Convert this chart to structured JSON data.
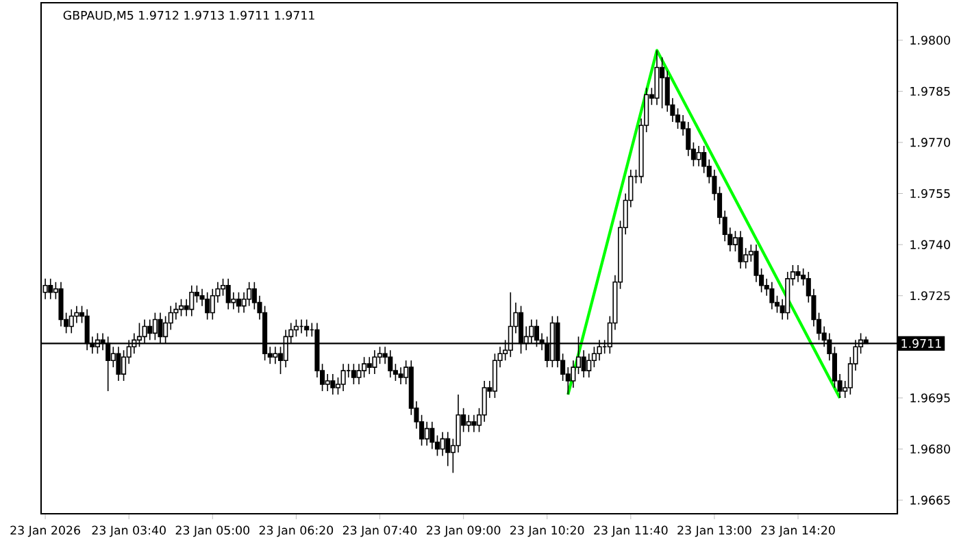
{
  "chart_data": {
    "type": "candlestick",
    "title": "GBPAUD,M5  1.9712 1.9713 1.9711 1.9711",
    "color": "#000000",
    "xlim": [
      "2026-01-23T02:16",
      "2026-01-23T15:55"
    ],
    "xticks": [
      {
        "value": "2026-01-23T02:20",
        "label": "23 Jan 2026"
      },
      {
        "value": "2026-01-23T03:40",
        "label": "23 Jan 03:40"
      },
      {
        "value": "2026-01-23T05:00",
        "label": "23 Jan 05:00"
      },
      {
        "value": "2026-01-23T06:20",
        "label": "23 Jan 06:20"
      },
      {
        "value": "2026-01-23T07:40",
        "label": "23 Jan 07:40"
      },
      {
        "value": "2026-01-23T09:00",
        "label": "23 Jan 09:00"
      },
      {
        "value": "2026-01-23T10:20",
        "label": "23 Jan 10:20"
      },
      {
        "value": "2026-01-23T11:40",
        "label": "23 Jan 11:40"
      },
      {
        "value": "2026-01-23T13:00",
        "label": "23 Jan 13:00"
      },
      {
        "value": "2026-01-23T14:20",
        "label": "23 Jan 14:20"
      }
    ],
    "ylim": [
      1.9661,
      1.9811
    ],
    "yticks": [
      {
        "value": 1.9665,
        "label": "1.9665"
      },
      {
        "value": 1.968,
        "label": "1.9680"
      },
      {
        "value": 1.9695,
        "label": "1.9695"
      },
      {
        "value": 1.9725,
        "label": "1.9725"
      },
      {
        "value": 1.974,
        "label": "1.9740"
      },
      {
        "value": 1.9755,
        "label": "1.9755"
      },
      {
        "value": 1.977,
        "label": "1.9770"
      },
      {
        "value": 1.9785,
        "label": "1.9785"
      },
      {
        "value": 1.98,
        "label": "1.9800"
      }
    ],
    "ref_lines": [
      {
        "axis": "y",
        "value": 1.9711,
        "label": "1.9711",
        "color": "#000000"
      }
    ],
    "x": [
      "2026-01-23T02:20",
      "2026-01-23T02:25",
      "2026-01-23T02:30",
      "2026-01-23T02:35",
      "2026-01-23T02:40",
      "2026-01-23T02:45",
      "2026-01-23T02:50",
      "2026-01-23T02:55",
      "2026-01-23T03:00",
      "2026-01-23T03:05",
      "2026-01-23T03:10",
      "2026-01-23T03:15",
      "2026-01-23T03:20",
      "2026-01-23T03:25",
      "2026-01-23T03:30",
      "2026-01-23T03:35",
      "2026-01-23T03:40",
      "2026-01-23T03:45",
      "2026-01-23T03:50",
      "2026-01-23T03:55",
      "2026-01-23T04:00",
      "2026-01-23T04:05",
      "2026-01-23T04:10",
      "2026-01-23T04:15",
      "2026-01-23T04:20",
      "2026-01-23T04:25",
      "2026-01-23T04:30",
      "2026-01-23T04:35",
      "2026-01-23T04:40",
      "2026-01-23T04:45",
      "2026-01-23T04:50",
      "2026-01-23T04:55",
      "2026-01-23T05:00",
      "2026-01-23T05:05",
      "2026-01-23T05:10",
      "2026-01-23T05:15",
      "2026-01-23T05:20",
      "2026-01-23T05:25",
      "2026-01-23T05:30",
      "2026-01-23T05:35",
      "2026-01-23T05:40",
      "2026-01-23T05:45",
      "2026-01-23T05:50",
      "2026-01-23T05:55",
      "2026-01-23T06:00",
      "2026-01-23T06:05",
      "2026-01-23T06:10",
      "2026-01-23T06:15",
      "2026-01-23T06:20",
      "2026-01-23T06:25",
      "2026-01-23T06:30",
      "2026-01-23T06:35",
      "2026-01-23T06:40",
      "2026-01-23T06:45",
      "2026-01-23T06:50",
      "2026-01-23T06:55",
      "2026-01-23T07:00",
      "2026-01-23T07:05",
      "2026-01-23T07:10",
      "2026-01-23T07:15",
      "2026-01-23T07:20",
      "2026-01-23T07:25",
      "2026-01-23T07:30",
      "2026-01-23T07:35",
      "2026-01-23T07:40",
      "2026-01-23T07:45",
      "2026-01-23T07:50",
      "2026-01-23T07:55",
      "2026-01-23T08:00",
      "2026-01-23T08:05",
      "2026-01-23T08:10",
      "2026-01-23T08:15",
      "2026-01-23T08:20",
      "2026-01-23T08:25",
      "2026-01-23T08:30",
      "2026-01-23T08:35",
      "2026-01-23T08:40",
      "2026-01-23T08:45",
      "2026-01-23T08:50",
      "2026-01-23T08:55",
      "2026-01-23T09:00",
      "2026-01-23T09:05",
      "2026-01-23T09:10",
      "2026-01-23T09:15",
      "2026-01-23T09:20",
      "2026-01-23T09:25",
      "2026-01-23T09:30",
      "2026-01-23T09:35",
      "2026-01-23T09:40",
      "2026-01-23T09:45",
      "2026-01-23T09:50",
      "2026-01-23T09:55",
      "2026-01-23T10:00",
      "2026-01-23T10:05",
      "2026-01-23T10:10",
      "2026-01-23T10:15",
      "2026-01-23T10:20",
      "2026-01-23T10:25",
      "2026-01-23T10:30",
      "2026-01-23T10:35",
      "2026-01-23T10:40",
      "2026-01-23T10:45",
      "2026-01-23T10:50",
      "2026-01-23T10:55",
      "2026-01-23T11:00",
      "2026-01-23T11:05",
      "2026-01-23T11:10",
      "2026-01-23T11:15",
      "2026-01-23T11:20",
      "2026-01-23T11:25",
      "2026-01-23T11:30",
      "2026-01-23T11:35",
      "2026-01-23T11:40",
      "2026-01-23T11:45",
      "2026-01-23T11:50",
      "2026-01-23T11:55",
      "2026-01-23T12:00",
      "2026-01-23T12:05",
      "2026-01-23T12:10",
      "2026-01-23T12:15",
      "2026-01-23T12:20",
      "2026-01-23T12:25",
      "2026-01-23T12:30",
      "2026-01-23T12:35",
      "2026-01-23T12:40",
      "2026-01-23T12:45",
      "2026-01-23T12:50",
      "2026-01-23T12:55",
      "2026-01-23T13:00",
      "2026-01-23T13:05",
      "2026-01-23T13:10",
      "2026-01-23T13:15",
      "2026-01-23T13:20",
      "2026-01-23T13:25",
      "2026-01-23T13:30",
      "2026-01-23T13:35",
      "2026-01-23T13:40",
      "2026-01-23T13:45",
      "2026-01-23T13:50",
      "2026-01-23T13:55",
      "2026-01-23T14:00",
      "2026-01-23T14:05",
      "2026-01-23T14:10",
      "2026-01-23T14:15",
      "2026-01-23T14:20",
      "2026-01-23T14:25",
      "2026-01-23T14:30",
      "2026-01-23T14:35",
      "2026-01-23T14:40",
      "2026-01-23T14:45",
      "2026-01-23T14:50",
      "2026-01-23T14:55",
      "2026-01-23T15:00",
      "2026-01-23T15:05",
      "2026-01-23T15:10",
      "2026-01-23T15:15",
      "2026-01-23T15:20",
      "2026-01-23T15:25"
    ],
    "ohlc": [
      [
        1.9726,
        1.973,
        1.9724,
        1.9728
      ],
      [
        1.9728,
        1.973,
        1.9724,
        1.9726
      ],
      [
        1.9726,
        1.9729,
        1.9724,
        1.9727
      ],
      [
        1.9727,
        1.9729,
        1.9716,
        1.9718
      ],
      [
        1.9718,
        1.972,
        1.9714,
        1.9716
      ],
      [
        1.9716,
        1.9721,
        1.9714,
        1.9719
      ],
      [
        1.9719,
        1.9722,
        1.9717,
        1.972
      ],
      [
        1.972,
        1.9722,
        1.9717,
        1.9719
      ],
      [
        1.9719,
        1.9721,
        1.9709,
        1.9711
      ],
      [
        1.9711,
        1.9713,
        1.9708,
        1.971
      ],
      [
        1.971,
        1.9714,
        1.9708,
        1.9712
      ],
      [
        1.9712,
        1.9714,
        1.9709,
        1.9711
      ],
      [
        1.9711,
        1.9713,
        1.9697,
        1.9706
      ],
      [
        1.9706,
        1.971,
        1.9704,
        1.9708
      ],
      [
        1.9708,
        1.971,
        1.97,
        1.9702
      ],
      [
        1.9702,
        1.9709,
        1.97,
        1.9707
      ],
      [
        1.9707,
        1.9712,
        1.9705,
        1.971
      ],
      [
        1.971,
        1.9714,
        1.9708,
        1.9712
      ],
      [
        1.9712,
        1.9717,
        1.971,
        1.9713
      ],
      [
        1.9713,
        1.9718,
        1.9711,
        1.9716
      ],
      [
        1.9716,
        1.9718,
        1.9712,
        1.9714
      ],
      [
        1.9714,
        1.972,
        1.9712,
        1.9718
      ],
      [
        1.9718,
        1.972,
        1.9711,
        1.9713
      ],
      [
        1.9713,
        1.9719,
        1.9711,
        1.9717
      ],
      [
        1.9717,
        1.9722,
        1.9715,
        1.972
      ],
      [
        1.972,
        1.9723,
        1.9718,
        1.9721
      ],
      [
        1.9721,
        1.9724,
        1.9719,
        1.9722
      ],
      [
        1.9722,
        1.9724,
        1.9719,
        1.9721
      ],
      [
        1.9721,
        1.9728,
        1.9719,
        1.9726
      ],
      [
        1.9726,
        1.9728,
        1.9723,
        1.9725
      ],
      [
        1.9725,
        1.9727,
        1.9722,
        1.9724
      ],
      [
        1.9724,
        1.9726,
        1.9718,
        1.972
      ],
      [
        1.972,
        1.9727,
        1.9718,
        1.9725
      ],
      [
        1.9725,
        1.9729,
        1.9723,
        1.9727
      ],
      [
        1.9727,
        1.973,
        1.9725,
        1.9728
      ],
      [
        1.9728,
        1.973,
        1.9721,
        1.9723
      ],
      [
        1.9723,
        1.9726,
        1.9721,
        1.9724
      ],
      [
        1.9724,
        1.9726,
        1.972,
        1.9722
      ],
      [
        1.9722,
        1.9726,
        1.972,
        1.9724
      ],
      [
        1.9724,
        1.9729,
        1.9722,
        1.9727
      ],
      [
        1.9727,
        1.9729,
        1.9721,
        1.9723
      ],
      [
        1.9723,
        1.9725,
        1.9718,
        1.972
      ],
      [
        1.972,
        1.9722,
        1.9706,
        1.9708
      ],
      [
        1.9708,
        1.971,
        1.9705,
        1.9707
      ],
      [
        1.9707,
        1.971,
        1.9705,
        1.9708
      ],
      [
        1.9708,
        1.971,
        1.9702,
        1.9706
      ],
      [
        1.9706,
        1.9715,
        1.9704,
        1.9713
      ],
      [
        1.9713,
        1.9717,
        1.9711,
        1.9715
      ],
      [
        1.9715,
        1.9718,
        1.9713,
        1.9716
      ],
      [
        1.9716,
        1.9718,
        1.9714,
        1.9716
      ],
      [
        1.9716,
        1.9718,
        1.9713,
        1.9715
      ],
      [
        1.9715,
        1.9717,
        1.9713,
        1.9715
      ],
      [
        1.9715,
        1.9717,
        1.9701,
        1.9703
      ],
      [
        1.9703,
        1.9705,
        1.9697,
        1.9699
      ],
      [
        1.9699,
        1.9702,
        1.9697,
        1.97
      ],
      [
        1.97,
        1.9702,
        1.9696,
        1.9698
      ],
      [
        1.9698,
        1.9701,
        1.9696,
        1.9699
      ],
      [
        1.9699,
        1.9705,
        1.9697,
        1.9703
      ],
      [
        1.9703,
        1.9705,
        1.9701,
        1.9703
      ],
      [
        1.9703,
        1.9705,
        1.9699,
        1.9701
      ],
      [
        1.9701,
        1.9705,
        1.9699,
        1.9703
      ],
      [
        1.9703,
        1.9707,
        1.9701,
        1.9705
      ],
      [
        1.9705,
        1.9707,
        1.9702,
        1.9704
      ],
      [
        1.9704,
        1.9709,
        1.9702,
        1.9707
      ],
      [
        1.9707,
        1.971,
        1.9705,
        1.9708
      ],
      [
        1.9708,
        1.971,
        1.9705,
        1.9707
      ],
      [
        1.9707,
        1.9709,
        1.9701,
        1.9703
      ],
      [
        1.9703,
        1.9705,
        1.97,
        1.9702
      ],
      [
        1.9702,
        1.9704,
        1.9699,
        1.9701
      ],
      [
        1.9701,
        1.9706,
        1.9699,
        1.9704
      ],
      [
        1.9704,
        1.9706,
        1.969,
        1.9692
      ],
      [
        1.9692,
        1.9694,
        1.9686,
        1.9688
      ],
      [
        1.9688,
        1.969,
        1.9681,
        1.9683
      ],
      [
        1.9683,
        1.9688,
        1.9681,
        1.9686
      ],
      [
        1.9686,
        1.9688,
        1.968,
        1.9682
      ],
      [
        1.9682,
        1.9684,
        1.9678,
        1.968
      ],
      [
        1.968,
        1.9685,
        1.9678,
        1.9683
      ],
      [
        1.9683,
        1.9685,
        1.9675,
        1.9679
      ],
      [
        1.9679,
        1.9683,
        1.9673,
        1.9681
      ],
      [
        1.9681,
        1.9696,
        1.9679,
        1.969
      ],
      [
        1.969,
        1.9692,
        1.9685,
        1.9687
      ],
      [
        1.9687,
        1.969,
        1.9685,
        1.9688
      ],
      [
        1.9688,
        1.969,
        1.9685,
        1.9687
      ],
      [
        1.9687,
        1.9692,
        1.9685,
        1.969
      ],
      [
        1.969,
        1.97,
        1.9688,
        1.9698
      ],
      [
        1.9698,
        1.97,
        1.9695,
        1.9697
      ],
      [
        1.9697,
        1.9708,
        1.9695,
        1.9706
      ],
      [
        1.9706,
        1.971,
        1.9704,
        1.9708
      ],
      [
        1.9708,
        1.9712,
        1.9706,
        1.9709
      ],
      [
        1.9709,
        1.9726,
        1.9707,
        1.9716
      ],
      [
        1.9716,
        1.9723,
        1.9714,
        1.972
      ],
      [
        1.972,
        1.9722,
        1.9708,
        1.9711
      ],
      [
        1.9711,
        1.9716,
        1.9709,
        1.9713
      ],
      [
        1.9713,
        1.9718,
        1.9711,
        1.9716
      ],
      [
        1.9716,
        1.9718,
        1.971,
        1.9712
      ],
      [
        1.9712,
        1.9714,
        1.9709,
        1.9711
      ],
      [
        1.9711,
        1.9713,
        1.9704,
        1.9706
      ],
      [
        1.9706,
        1.9719,
        1.9704,
        1.9717
      ],
      [
        1.9717,
        1.9719,
        1.9704,
        1.9706
      ],
      [
        1.9706,
        1.9708,
        1.97,
        1.9702
      ],
      [
        1.9702,
        1.9704,
        1.9696,
        1.97
      ],
      [
        1.97,
        1.9706,
        1.9698,
        1.9704
      ],
      [
        1.9704,
        1.9713,
        1.9702,
        1.9707
      ],
      [
        1.9707,
        1.9709,
        1.9701,
        1.9703
      ],
      [
        1.9703,
        1.9708,
        1.9701,
        1.9706
      ],
      [
        1.9706,
        1.971,
        1.9704,
        1.9708
      ],
      [
        1.9708,
        1.9712,
        1.9706,
        1.971
      ],
      [
        1.971,
        1.9712,
        1.9708,
        1.971
      ],
      [
        1.971,
        1.9719,
        1.9708,
        1.9717
      ],
      [
        1.9717,
        1.9731,
        1.9715,
        1.9729
      ],
      [
        1.9729,
        1.9747,
        1.9727,
        1.9745
      ],
      [
        1.9745,
        1.9755,
        1.9743,
        1.9753
      ],
      [
        1.9753,
        1.9762,
        1.9751,
        1.976
      ],
      [
        1.976,
        1.9762,
        1.9758,
        1.976
      ],
      [
        1.976,
        1.9777,
        1.9758,
        1.9775
      ],
      [
        1.9775,
        1.9786,
        1.9773,
        1.9784
      ],
      [
        1.9784,
        1.9786,
        1.9781,
        1.9783
      ],
      [
        1.9783,
        1.9797,
        1.9781,
        1.9792
      ],
      [
        1.9792,
        1.9795,
        1.978,
        1.9789
      ],
      [
        1.9789,
        1.9791,
        1.9779,
        1.9781
      ],
      [
        1.9781,
        1.9783,
        1.9776,
        1.9778
      ],
      [
        1.9778,
        1.978,
        1.9774,
        1.9776
      ],
      [
        1.9776,
        1.9778,
        1.9772,
        1.9774
      ],
      [
        1.9774,
        1.9776,
        1.9766,
        1.9768
      ],
      [
        1.9768,
        1.977,
        1.9763,
        1.9765
      ],
      [
        1.9765,
        1.9769,
        1.9763,
        1.9767
      ],
      [
        1.9767,
        1.9769,
        1.9761,
        1.9763
      ],
      [
        1.9763,
        1.9765,
        1.9758,
        1.976
      ],
      [
        1.976,
        1.9762,
        1.9753,
        1.9755
      ],
      [
        1.9755,
        1.9757,
        1.9746,
        1.9748
      ],
      [
        1.9748,
        1.975,
        1.9741,
        1.9743
      ],
      [
        1.9743,
        1.9745,
        1.9738,
        1.974
      ],
      [
        1.974,
        1.9744,
        1.9738,
        1.9742
      ],
      [
        1.9742,
        1.9744,
        1.9733,
        1.9735
      ],
      [
        1.9735,
        1.9739,
        1.9733,
        1.9737
      ],
      [
        1.9737,
        1.974,
        1.9735,
        1.9738
      ],
      [
        1.9738,
        1.974,
        1.9729,
        1.9731
      ],
      [
        1.9731,
        1.9733,
        1.9726,
        1.9728
      ],
      [
        1.9728,
        1.973,
        1.9725,
        1.9727
      ],
      [
        1.9727,
        1.9729,
        1.9721,
        1.9723
      ],
      [
        1.9723,
        1.9725,
        1.972,
        1.9722
      ],
      [
        1.9722,
        1.9724,
        1.9718,
        1.972
      ],
      [
        1.972,
        1.9732,
        1.9718,
        1.973
      ],
      [
        1.973,
        1.9734,
        1.9728,
        1.9732
      ],
      [
        1.9732,
        1.9734,
        1.9729,
        1.9731
      ],
      [
        1.9731,
        1.9733,
        1.9728,
        1.973
      ],
      [
        1.973,
        1.9732,
        1.9723,
        1.9725
      ],
      [
        1.9725,
        1.9727,
        1.9716,
        1.9718
      ],
      [
        1.9718,
        1.972,
        1.9712,
        1.9714
      ],
      [
        1.9714,
        1.9716,
        1.971,
        1.9712
      ],
      [
        1.9712,
        1.9714,
        1.9706,
        1.9708
      ],
      [
        1.9708,
        1.971,
        1.9698,
        1.97
      ],
      [
        1.97,
        1.9702,
        1.9695,
        1.9697
      ],
      [
        1.9697,
        1.97,
        1.9695,
        1.9698
      ],
      [
        1.9698,
        1.9707,
        1.9696,
        1.9705
      ],
      [
        1.9705,
        1.9712,
        1.9703,
        1.971
      ],
      [
        1.971,
        1.9714,
        1.9708,
        1.9712
      ],
      [
        1.9712,
        1.9713,
        1.9711,
        1.9711
      ]
    ],
    "series": [
      {
        "type": "line",
        "color": "#00ff00",
        "x": [
          "2026-01-23T10:40",
          "2026-01-23T12:05",
          "2026-01-23T15:00"
        ],
        "values": [
          1.9696,
          1.9797,
          1.9695
        ]
      }
    ]
  }
}
